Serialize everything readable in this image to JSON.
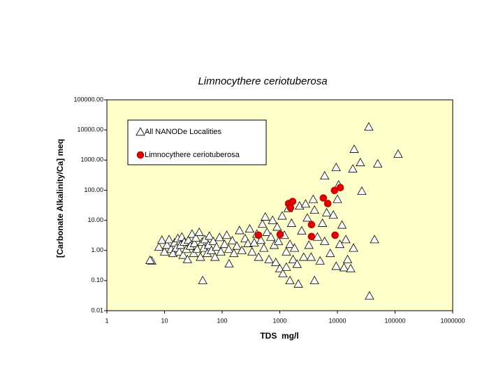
{
  "chart_data": {
    "type": "scatter",
    "title": "Limnocythere ceriotuberosa",
    "x_label": "TDS  mg/l",
    "y_label": "[Carbonate Alkalinity/Ca] meq",
    "xscale": "log",
    "yscale": "log",
    "xlim": [
      1,
      1000000
    ],
    "ylim": [
      0.01,
      100000
    ],
    "xticks": [
      1,
      10,
      100,
      1000,
      10000,
      100000,
      1000000
    ],
    "yticks": [
      {
        "value": 100000,
        "label": "100000.00"
      },
      {
        "value": 10000,
        "label": "10000.00"
      },
      {
        "value": 1000,
        "label": "1000.00"
      },
      {
        "value": 100,
        "label": "100.00"
      },
      {
        "value": 10,
        "label": "10.00"
      },
      {
        "value": 1,
        "label": "1.00"
      },
      {
        "value": 0.1,
        "label": "0.10"
      },
      {
        "value": 0.01,
        "label": "0.01"
      }
    ],
    "facecolor": "#ffffcc",
    "legend": "upper left",
    "series": [
      {
        "name": "All NANODe Localities",
        "marker": "triangle",
        "color": "#ffffff",
        "x": [
          6,
          8,
          9,
          10,
          11,
          12,
          13,
          14,
          15,
          16,
          17,
          18,
          19,
          20,
          21,
          22,
          24,
          25,
          26,
          28,
          30,
          32,
          33,
          35,
          37,
          40,
          42,
          45,
          48,
          50,
          55,
          58,
          60,
          65,
          70,
          75,
          80,
          90,
          95,
          110,
          120,
          130,
          150,
          160,
          180,
          200,
          220,
          250,
          280,
          300,
          330,
          360,
          400,
          430,
          470,
          500,
          530,
          560,
          600,
          650,
          700,
          750,
          800,
          850,
          900,
          950,
          1000,
          1100,
          1200,
          1300,
          1400,
          1500,
          1600,
          1700,
          1800,
          2000,
          2200,
          2400,
          2600,
          2800,
          3000,
          3200,
          3500,
          3800,
          4000,
          4500,
          5000,
          5500,
          6000,
          6500,
          7500,
          8500,
          9500,
          10000,
          11000,
          12000,
          13000,
          14000,
          15000,
          17000,
          19000,
          35000,
          113000,
          19500,
          50000,
          25000,
          18500,
          9500,
          6000,
          10500,
          26500,
          46,
          36000,
          44000,
          19000,
          4000,
          2100,
          1500,
          1130,
          1300,
          5.6,
          132
        ],
        "values": [
          0.45,
          1.3,
          2.2,
          0.9,
          1.5,
          2.3,
          1.1,
          0.8,
          1.8,
          1.2,
          2.5,
          0.9,
          1.5,
          2.8,
          0.7,
          1.9,
          1.1,
          0.5,
          2.2,
          1.4,
          3.5,
          0.8,
          1.7,
          2.6,
          1.1,
          4.0,
          0.6,
          1.9,
          1.2,
          2.3,
          0.8,
          1.5,
          3.0,
          1.0,
          2.0,
          0.6,
          1.3,
          2.7,
          0.9,
          1.6,
          3.2,
          1.1,
          2.1,
          0.8,
          1.4,
          4.6,
          1.0,
          2.5,
          1.7,
          5.2,
          0.9,
          1.8,
          3.5,
          0.6,
          2.2,
          7.5,
          1.2,
          13,
          4.0,
          0.5,
          2.8,
          10,
          1.5,
          0.4,
          6.0,
          2.0,
          0.25,
          14,
          3.2,
          0.9,
          25,
          1.6,
          8,
          0.5,
          1.2,
          0.35,
          30,
          4.5,
          0.6,
          35,
          12,
          1.5,
          0.6,
          50,
          22,
          2.8,
          0.45,
          8,
          2.0,
          18,
          0.8,
          15,
          0.3,
          50,
          1.6,
          7,
          0.27,
          2.3,
          0.5,
          0.25,
          1.2,
          12700,
          1580,
          2290,
          750,
          830,
          510,
          570,
          300,
          150,
          93,
          0.1,
          0.031,
          2.3,
          1.2,
          0.1,
          0.077,
          0.1,
          0.17,
          0.28,
          0.47,
          0.36
        ]
      },
      {
        "name": "Limnocythere ceriotuberosa",
        "marker": "circle",
        "color": "#e00000",
        "x": [
          427,
          1014,
          1420,
          1540,
          1670,
          3550,
          3550,
          5700,
          6800,
          8900,
          11200,
          9100
        ],
        "values": [
          3.2,
          3.4,
          36,
          26,
          42,
          7.2,
          2.9,
          55,
          36,
          98,
          122,
          3.2
        ]
      }
    ]
  }
}
